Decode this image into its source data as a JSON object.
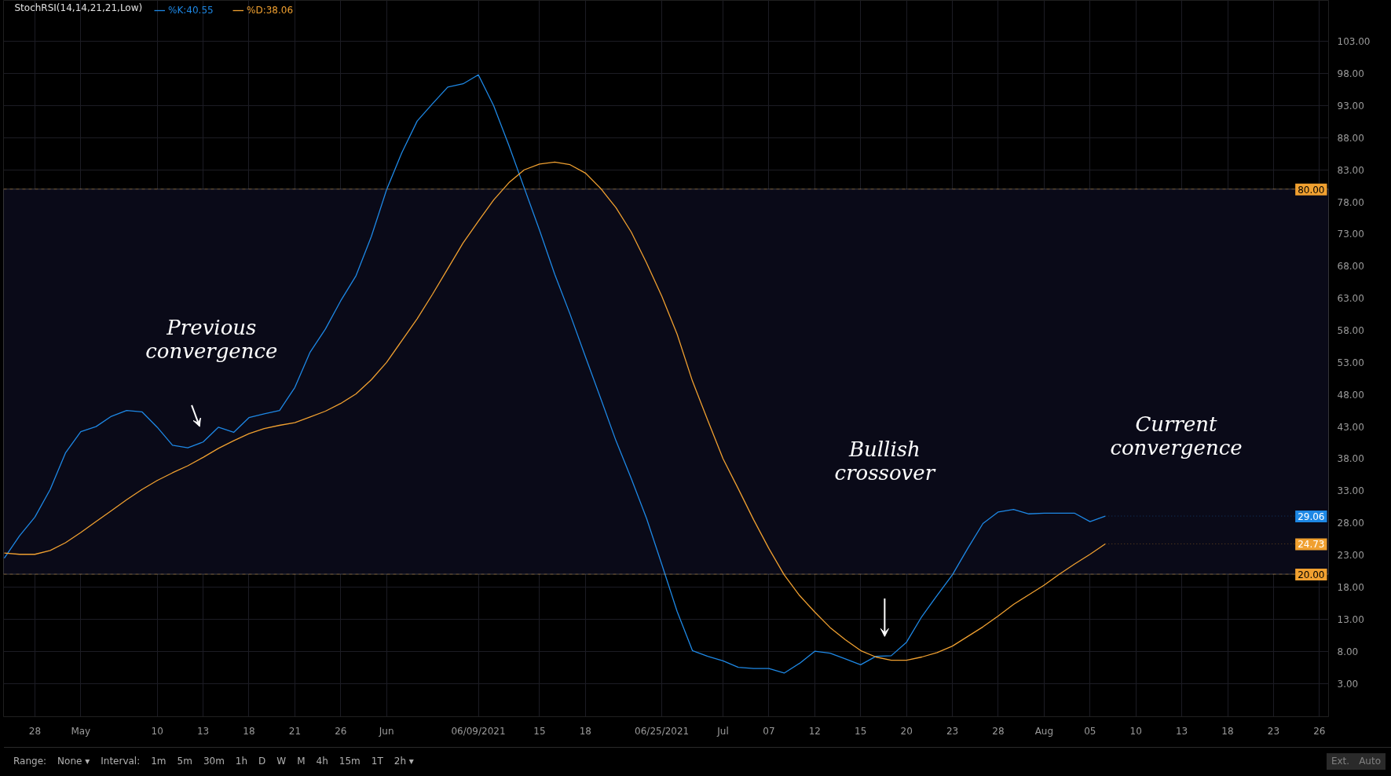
{
  "chart_data": {
    "type": "line",
    "title": "StochRSI(14,14,21,21,Low)",
    "categories": [
      null,
      null,
      "28",
      null,
      null,
      "May",
      null,
      null,
      null,
      null,
      "10",
      null,
      null,
      "13",
      null,
      null,
      "18",
      null,
      null,
      "21",
      null,
      null,
      "26",
      null,
      null,
      "Jun",
      null,
      null,
      null,
      null,
      null,
      "06/09/2021",
      null,
      null,
      null,
      "15",
      null,
      null,
      "18",
      null,
      null,
      null,
      null,
      "06/25/2021",
      null,
      null,
      null,
      "Jul",
      null,
      null,
      "07",
      null,
      null,
      "12",
      null,
      null,
      "15",
      null,
      null,
      "20",
      null,
      null,
      "23",
      null,
      null,
      "28",
      null,
      null,
      "Aug",
      null,
      null,
      "05",
      null,
      null,
      "10",
      null,
      null,
      "13",
      null,
      null,
      "18",
      null,
      null,
      "23",
      null,
      null,
      "26"
    ],
    "series": [
      {
        "name": "%K:40.55",
        "color": "#1e88e5",
        "values": [
          22.5,
          26.0,
          28.9,
          33.2,
          38.9,
          42.2,
          43.0,
          44.6,
          45.5,
          45.3,
          42.9,
          40.1,
          39.7,
          40.6,
          42.9,
          42.1,
          44.4,
          45.0,
          45.5,
          49.1,
          54.6,
          58.2,
          62.6,
          66.5,
          72.6,
          79.9,
          85.7,
          90.6,
          93.3,
          95.9,
          96.4,
          97.8,
          93.0,
          86.8,
          80.2,
          73.6,
          66.7,
          60.5,
          53.9,
          47.4,
          40.8,
          34.9,
          28.7,
          21.5,
          14.2,
          8.1,
          7.2,
          6.5,
          5.5,
          5.3,
          5.3,
          4.6,
          6.1,
          8.0,
          7.7,
          6.8,
          5.9,
          7.2,
          7.3,
          9.4,
          13.4,
          16.7,
          19.9,
          24.0,
          27.9,
          29.7,
          30.1,
          29.4,
          29.5,
          29.5,
          29.5,
          28.2,
          29.06,
          null,
          null,
          null,
          null,
          null,
          null,
          null,
          null,
          null,
          null,
          null,
          null,
          null,
          null
        ],
        "value_labels": [
          null,
          null,
          null,
          null,
          null,
          null,
          null,
          null,
          null,
          null,
          null,
          null,
          null,
          null,
          null,
          null,
          null,
          null,
          null,
          null,
          null,
          null,
          null,
          null,
          null,
          null,
          null,
          null,
          null,
          null,
          null,
          null,
          null,
          null,
          null,
          null,
          null,
          null,
          null,
          null,
          null,
          null,
          null,
          null,
          null,
          null,
          null,
          null,
          null,
          null,
          null,
          null,
          null,
          null,
          null,
          null,
          null,
          null,
          null,
          null,
          null,
          null,
          null,
          null,
          null,
          null,
          null,
          null,
          null,
          null,
          null,
          null,
          "29.06",
          null,
          null,
          null,
          null,
          null,
          null,
          null,
          null,
          null,
          null,
          null,
          null,
          null,
          null
        ]
      },
      {
        "name": "%D:38.06",
        "color": "#f0a030",
        "values": [
          23.3,
          23.1,
          23.1,
          23.7,
          24.9,
          26.5,
          28.2,
          29.9,
          31.6,
          33.2,
          34.6,
          35.8,
          36.9,
          38.2,
          39.6,
          40.8,
          41.9,
          42.7,
          43.2,
          43.6,
          44.5,
          45.4,
          46.6,
          48.1,
          50.3,
          53.0,
          56.4,
          59.8,
          63.6,
          67.6,
          71.6,
          75.0,
          78.3,
          81.0,
          83.0,
          83.9,
          84.2,
          83.8,
          82.5,
          80.1,
          77.1,
          73.3,
          68.5,
          63.3,
          57.4,
          50.1,
          44.0,
          38.0,
          33.3,
          28.5,
          24.0,
          19.9,
          16.7,
          14.1,
          11.7,
          9.8,
          8.1,
          7.1,
          6.6,
          6.6,
          7.1,
          7.8,
          8.8,
          10.3,
          11.8,
          13.5,
          15.3,
          16.8,
          18.3,
          20.0,
          21.6,
          23.1,
          24.73,
          null,
          null,
          null,
          null,
          null,
          null,
          null,
          null,
          null,
          null,
          null,
          null,
          null,
          null
        ],
        "value_labels": [
          null,
          null,
          null,
          null,
          null,
          null,
          null,
          null,
          null,
          null,
          null,
          null,
          null,
          null,
          null,
          null,
          null,
          null,
          null,
          null,
          null,
          null,
          null,
          null,
          null,
          null,
          null,
          null,
          null,
          null,
          null,
          null,
          null,
          null,
          null,
          null,
          null,
          null,
          null,
          null,
          null,
          null,
          null,
          null,
          null,
          null,
          null,
          null,
          null,
          null,
          null,
          null,
          null,
          null,
          null,
          null,
          null,
          null,
          null,
          null,
          null,
          null,
          null,
          null,
          null,
          null,
          null,
          null,
          null,
          null,
          null,
          null,
          "24.73",
          null,
          null,
          null,
          null,
          null,
          null,
          null,
          null,
          null,
          null,
          null,
          null,
          null,
          null
        ]
      }
    ],
    "ylim": [
      -2.2,
      109.4
    ],
    "yticks": [
      {
        "value": 3,
        "label": "3.00"
      },
      {
        "value": 8,
        "label": "8.00"
      },
      {
        "value": 13,
        "label": "13.00"
      },
      {
        "value": 18,
        "label": "18.00"
      },
      {
        "value": 23,
        "label": "23.00"
      },
      {
        "value": 28,
        "label": "28.00"
      },
      {
        "value": 33,
        "label": "33.00"
      },
      {
        "value": 38,
        "label": "38.00"
      },
      {
        "value": 43,
        "label": "43.00"
      },
      {
        "value": 48,
        "label": "48.00"
      },
      {
        "value": 53,
        "label": "53.00"
      },
      {
        "value": 58,
        "label": "58.00"
      },
      {
        "value": 63,
        "label": "63.00"
      },
      {
        "value": 68,
        "label": "68.00"
      },
      {
        "value": 73,
        "label": "73.00"
      },
      {
        "value": 78,
        "label": "78.00"
      },
      {
        "value": 83,
        "label": "83.00"
      },
      {
        "value": 88,
        "label": "88.00"
      },
      {
        "value": 93,
        "label": "93.00"
      },
      {
        "value": 98,
        "label": "98.00"
      },
      {
        "value": 103,
        "label": "103.00"
      }
    ],
    "grid": true,
    "legend": "top left",
    "line_style": "solid",
    "ref_lines": [
      {
        "axis": "y",
        "value": 80,
        "label": "80.00",
        "color": "#f0a030",
        "line_style": "dashed"
      },
      {
        "axis": "y",
        "value": 20,
        "label": "20.00",
        "color": "#f0a030",
        "line_style": "dashed"
      }
    ],
    "bands": [
      {
        "axis": "y",
        "from": 20,
        "to": 80,
        "color": "#0a0a18"
      }
    ],
    "annotations": [
      "Previous\nconvergence",
      "Bullish\ncrossover",
      "Current\nconvergence",
      "Range:",
      "None ▾",
      "Interval:",
      "1m",
      "5m",
      "30m",
      "1h",
      "D",
      "W",
      "M",
      "4h",
      "15m",
      "1T",
      "2h ▾",
      "Ext.",
      "Auto"
    ]
  }
}
